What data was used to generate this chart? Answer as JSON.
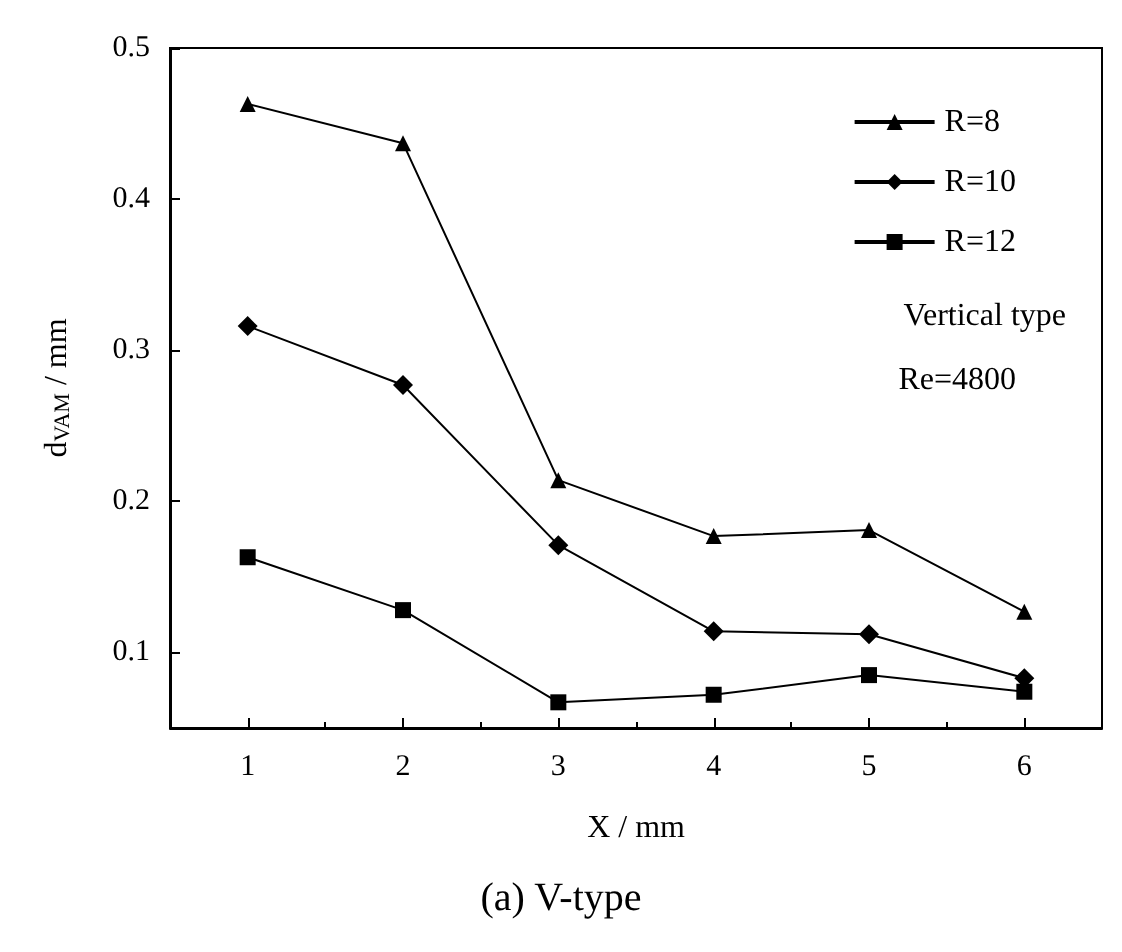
{
  "chart_data": {
    "type": "line",
    "title": "(a) V-type",
    "xlabel": "X / mm",
    "ylabel": "d$_{VAM}$ / mm",
    "x": [
      1,
      2,
      3,
      4,
      5,
      6
    ],
    "series": [
      {
        "name": "R=8",
        "color": "#000000",
        "marker": "triangle",
        "values": [
          0.463,
          0.437,
          0.214,
          0.177,
          0.181,
          0.127
        ]
      },
      {
        "name": "R=10",
        "color": "#000000",
        "marker": "diamond",
        "values": [
          0.316,
          0.277,
          0.171,
          0.114,
          0.112,
          0.083
        ]
      },
      {
        "name": "R=12",
        "color": "#000000",
        "marker": "square",
        "values": [
          0.163,
          0.128,
          0.067,
          0.072,
          0.085,
          0.074
        ]
      }
    ],
    "annotations": [
      "Vertical type",
      "Re=4800"
    ],
    "xlim": [
      0.5,
      6.5
    ],
    "xticks": [
      1,
      2,
      3,
      4,
      5,
      6
    ],
    "ylim": [
      0.05,
      0.5
    ],
    "yticks": [
      0.1,
      0.2,
      0.3,
      0.4,
      0.5
    ],
    "grid": false,
    "legend": "top right",
    "line_style": "solid"
  }
}
